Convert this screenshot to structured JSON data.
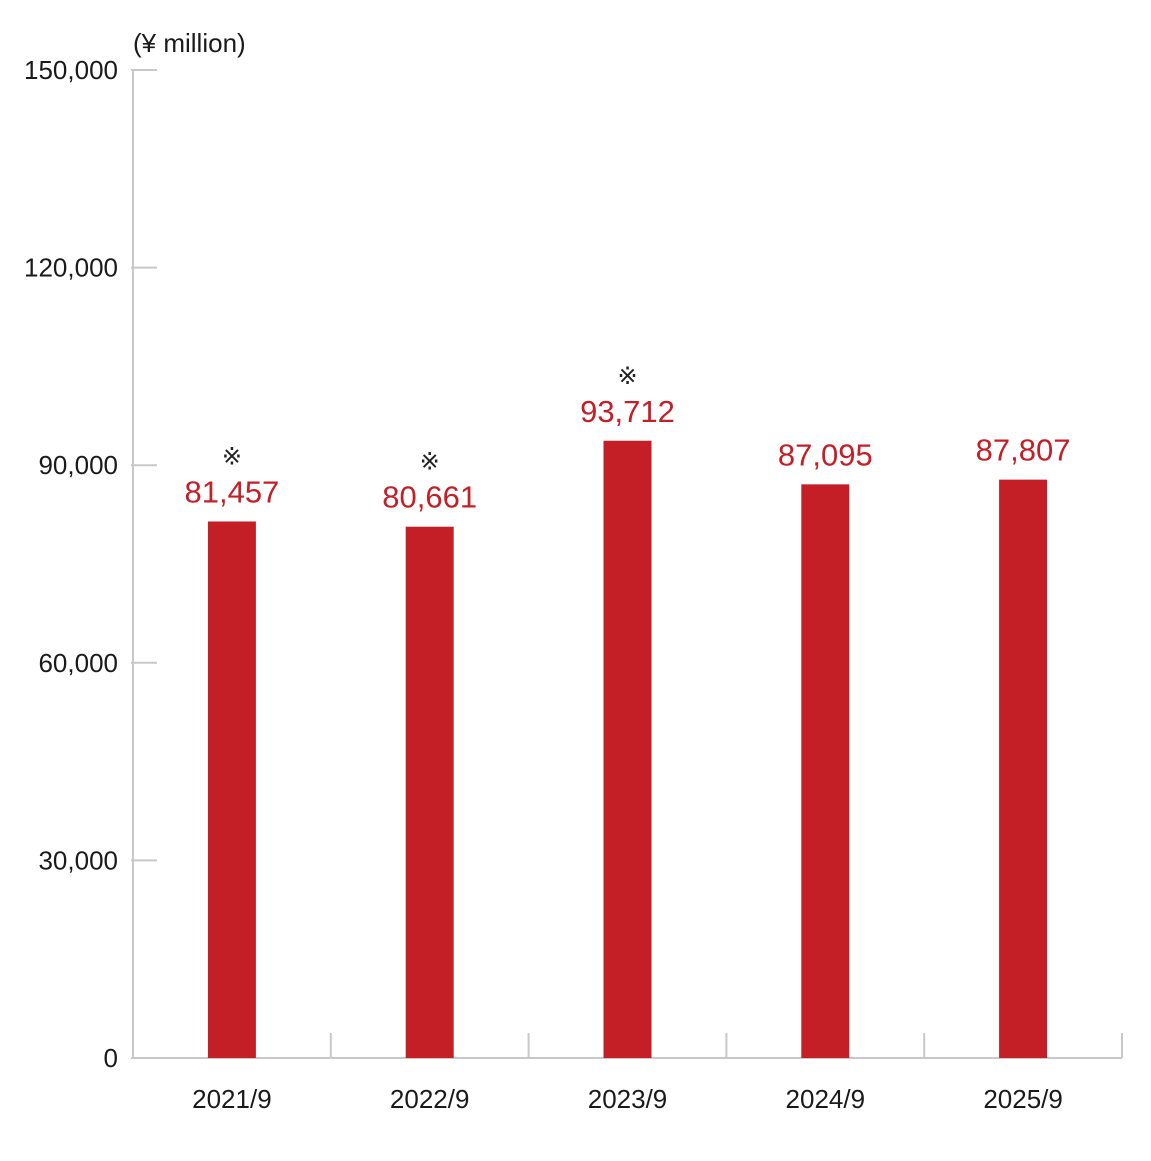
{
  "chart_data": {
    "type": "bar",
    "unit_label": "(¥ million)",
    "categories": [
      "2021/9",
      "2022/9",
      "2023/9",
      "2024/9",
      "2025/9"
    ],
    "values": [
      81457,
      80661,
      93712,
      87095,
      87807
    ],
    "value_labels": [
      "81,457",
      "80,661",
      "93,712",
      "87,095",
      "87,807"
    ],
    "notes": [
      "※",
      "※",
      "※",
      "",
      ""
    ],
    "ylim": [
      0,
      150000
    ],
    "yticks": [
      0,
      30000,
      60000,
      90000,
      120000,
      150000
    ],
    "ytick_labels": [
      "0",
      "30,000",
      "60,000",
      "90,000",
      "120,000",
      "150,000"
    ],
    "bar_color": "#c41e26",
    "label_color": "#c41e26",
    "axis_color": "#c8c8c8",
    "grid": false,
    "legend": "none"
  }
}
